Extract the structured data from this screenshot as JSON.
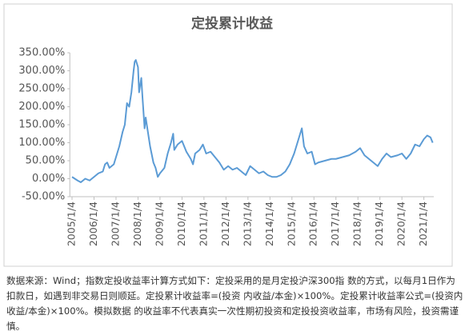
{
  "chart_data": {
    "type": "line",
    "title": "定投累计收益",
    "x": [
      2005.0,
      2005.25,
      2005.4,
      2005.6,
      2005.8,
      2006.0,
      2006.2,
      2006.4,
      2006.5,
      2006.6,
      2006.7,
      2006.9,
      2007.0,
      2007.15,
      2007.3,
      2007.4,
      2007.5,
      2007.6,
      2007.7,
      2007.8,
      2007.85,
      2007.9,
      2008.0,
      2008.05,
      2008.15,
      2008.2,
      2008.3,
      2008.35,
      2008.45,
      2008.55,
      2008.7,
      2008.8,
      2008.9,
      2009.0,
      2009.2,
      2009.35,
      2009.5,
      2009.6,
      2009.65,
      2009.8,
      2010.0,
      2010.2,
      2010.4,
      2010.5,
      2010.6,
      2010.8,
      2010.95,
      2011.1,
      2011.3,
      2011.5,
      2011.7,
      2011.9,
      2012.1,
      2012.3,
      2012.5,
      2012.7,
      2012.9,
      2013.1,
      2013.3,
      2013.5,
      2013.7,
      2013.9,
      2014.1,
      2014.3,
      2014.5,
      2014.7,
      2014.9,
      2015.1,
      2015.3,
      2015.45,
      2015.55,
      2015.7,
      2015.9,
      2016.05,
      2016.2,
      2016.5,
      2016.8,
      2017.0,
      2017.3,
      2017.6,
      2017.9,
      2018.1,
      2018.3,
      2018.5,
      2018.7,
      2018.9,
      2019.1,
      2019.3,
      2019.5,
      2019.8,
      2020.0,
      2020.2,
      2020.4,
      2020.6,
      2020.8,
      2021.0,
      2021.15,
      2021.3,
      2021.4
    ],
    "values": [
      5,
      -5,
      -10,
      0,
      -5,
      5,
      15,
      20,
      40,
      45,
      30,
      40,
      60,
      90,
      130,
      150,
      210,
      200,
      240,
      300,
      325,
      330,
      310,
      240,
      280,
      230,
      140,
      170,
      130,
      90,
      45,
      30,
      5,
      15,
      30,
      70,
      100,
      125,
      80,
      95,
      105,
      75,
      55,
      40,
      70,
      80,
      95,
      70,
      75,
      60,
      45,
      25,
      35,
      25,
      30,
      20,
      10,
      35,
      25,
      15,
      20,
      10,
      5,
      5,
      10,
      20,
      40,
      70,
      110,
      140,
      90,
      70,
      75,
      40,
      45,
      50,
      55,
      55,
      60,
      65,
      75,
      85,
      65,
      55,
      45,
      35,
      55,
      70,
      60,
      65,
      70,
      55,
      70,
      95,
      90,
      110,
      120,
      115,
      100
    ],
    "color": "#5b9bd5",
    "xlim": [
      2004.9,
      2021.45
    ],
    "xticks": [
      {
        "value": 2005,
        "label": "2005/1/4"
      },
      {
        "value": 2006,
        "label": "2006/1/4"
      },
      {
        "value": 2007,
        "label": "2007/1/4"
      },
      {
        "value": 2008,
        "label": "2008/1/4"
      },
      {
        "value": 2009,
        "label": "2009/1/4"
      },
      {
        "value": 2010,
        "label": "2010/1/4"
      },
      {
        "value": 2011,
        "label": "2011/1/4"
      },
      {
        "value": 2012,
        "label": "2012/1/4"
      },
      {
        "value": 2013,
        "label": "2013/1/4"
      },
      {
        "value": 2014,
        "label": "2014/1/4"
      },
      {
        "value": 2015,
        "label": "2015/1/4"
      },
      {
        "value": 2016,
        "label": "2016/1/4"
      },
      {
        "value": 2017,
        "label": "2017/1/4"
      },
      {
        "value": 2018,
        "label": "2018/1/4"
      },
      {
        "value": 2019,
        "label": "2019/1/4"
      },
      {
        "value": 2020,
        "label": "2020/1/4"
      },
      {
        "value": 2021,
        "label": "2021/1/4"
      }
    ],
    "ylim": [
      -50,
      350
    ],
    "yticks": [
      {
        "value": -50,
        "label": "-50.00%"
      },
      {
        "value": 0,
        "label": "0.00%"
      },
      {
        "value": 50,
        "label": "50.00%"
      },
      {
        "value": 100,
        "label": "100.00%"
      },
      {
        "value": 150,
        "label": "150.00%"
      },
      {
        "value": 200,
        "label": "200.00%"
      },
      {
        "value": 250,
        "label": "250.00%"
      },
      {
        "value": 300,
        "label": "300.00%"
      },
      {
        "value": 350,
        "label": "350.00%"
      }
    ],
    "caption": "数据来源：Wind；指数定投收益率计算方式如下：定投采用的是月定投沪深300指 数的方式，以每月1日作为扣款日，如遇到非交易日则顺延。定投累计收益率=(投资 内收益/本金)×100%。定投累计收益率公式=(投资内收益/本金)×100%。模拟数据 的收益率不代表真实一次性期初投资和定投投资收益率，市场有风险，投资需谨慎。"
  }
}
